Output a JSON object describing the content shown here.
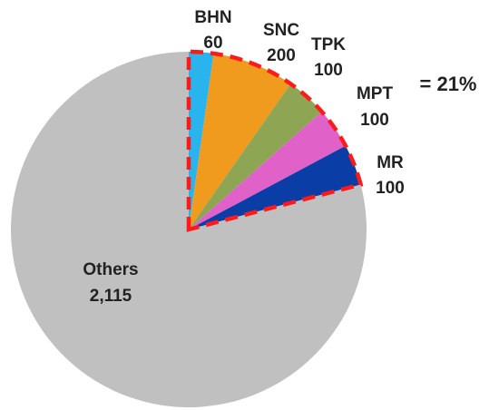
{
  "chart_data": {
    "type": "pie",
    "categories": [
      "BHN",
      "SNC",
      "TPK",
      "MPT",
      "MR",
      "Others"
    ],
    "values": [
      60,
      200,
      100,
      100,
      100,
      2115
    ],
    "value_labels": [
      "60",
      "200",
      "100",
      "100",
      "100",
      "2,115"
    ],
    "colors": [
      "#2ab4ee",
      "#f09b1e",
      "#8ea653",
      "#e062c9",
      "#0a3ea6",
      "#c0c0c0"
    ],
    "annotation": "= 21%",
    "annotation_color": "#ff1a1a"
  }
}
